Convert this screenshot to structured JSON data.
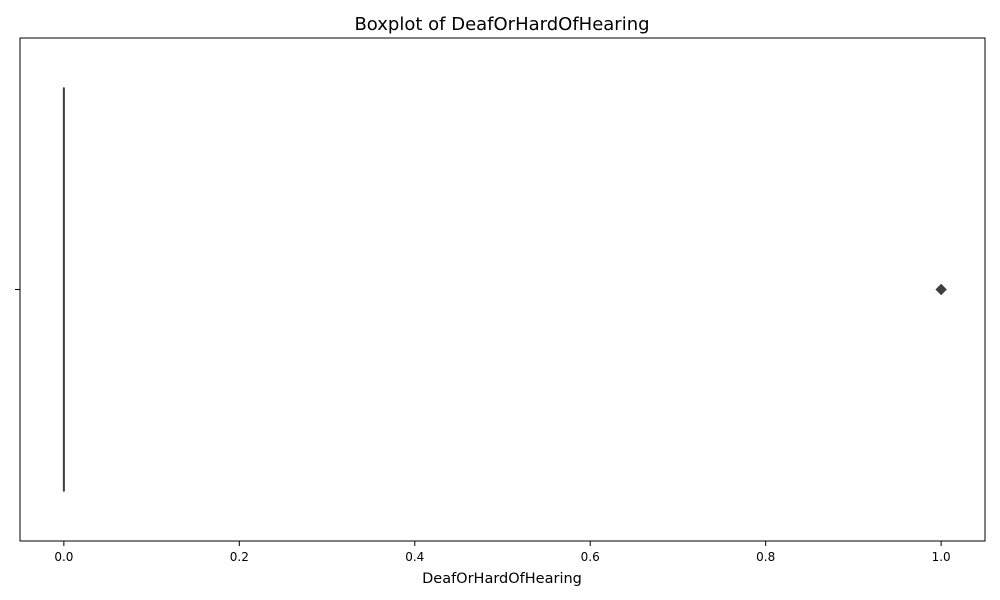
{
  "chart_data": {
    "type": "boxplot",
    "orientation": "horizontal",
    "title": "Boxplot of DeafOrHardOfHearing",
    "xlabel": "DeafOrHardOfHearing",
    "ylabel": "",
    "xlim": [
      -0.05,
      1.05
    ],
    "xticks": [
      0.0,
      0.2,
      0.4,
      0.6,
      0.8,
      1.0
    ],
    "xtick_labels": [
      "0.0",
      "0.2",
      "0.4",
      "0.6",
      "0.8",
      "1.0"
    ],
    "grid": false,
    "box": {
      "min": 0.0,
      "q1": 0.0,
      "median": 0.0,
      "q3": 0.0,
      "max": 0.0,
      "outliers": [
        1.0
      ]
    },
    "colors": {
      "box_line": "#3f3f3f",
      "axes": "#000000"
    }
  }
}
